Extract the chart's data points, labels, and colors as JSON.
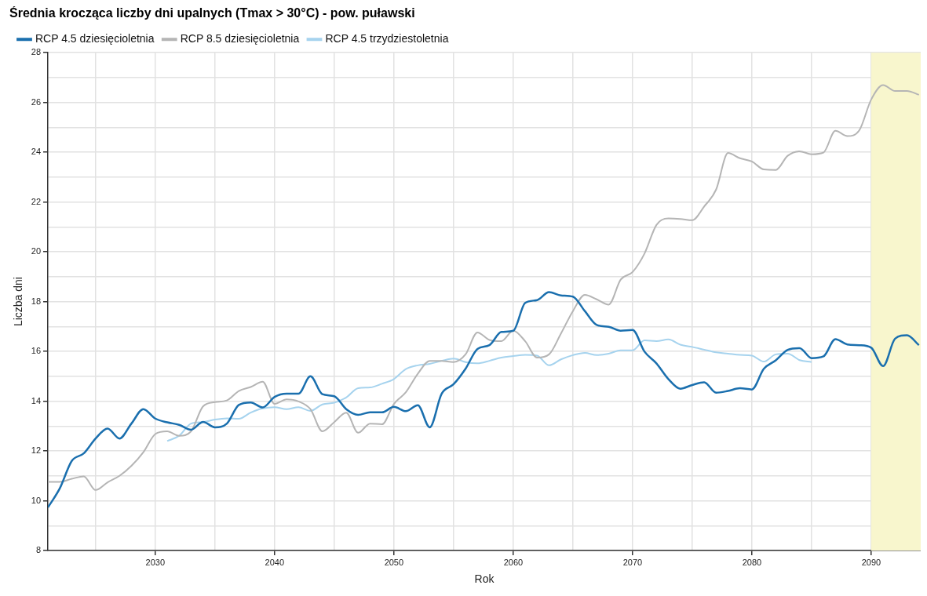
{
  "chart_data": {
    "type": "line",
    "title": "Średnia krocząca liczby dni upalnych (Tmax > 30°C) - pow. puławski",
    "xlabel": "Rok",
    "ylabel": "Liczba dni",
    "legend": "top left",
    "grid": true,
    "marker": "none",
    "line_style": "solid",
    "xlim": [
      2021,
      2094.15
    ],
    "xticks": [
      {
        "value": 2025,
        "label": null
      },
      2030,
      {
        "value": 2035,
        "label": null
      },
      2040,
      {
        "value": 2045,
        "label": null
      },
      2050,
      {
        "value": 2055,
        "label": null
      },
      2060,
      {
        "value": 2065,
        "label": null
      },
      2070,
      {
        "value": 2075,
        "label": null
      },
      2080,
      {
        "value": 2085,
        "label": null
      },
      2090
    ],
    "ylim": [
      8,
      28
    ],
    "yticks": [
      8,
      {
        "value": 9,
        "label": null
      },
      10,
      {
        "value": 11,
        "label": null
      },
      12,
      {
        "value": 13,
        "label": null
      },
      14,
      {
        "value": 15,
        "label": null
      },
      16,
      {
        "value": 17,
        "label": null
      },
      18,
      {
        "value": 19,
        "label": null
      },
      20,
      {
        "value": 21,
        "label": null
      },
      22,
      {
        "value": 23,
        "label": null
      },
      24,
      {
        "value": 25,
        "label": null
      },
      26,
      {
        "value": 27,
        "label": null
      },
      28
    ],
    "bands": [
      {
        "axis": "x",
        "from": 2090,
        "to": 2094.15,
        "color": "#f8f6cd"
      }
    ],
    "x": [
      2021,
      2022,
      2023,
      2024,
      2025,
      2026,
      2027,
      2028,
      2029,
      2030,
      2031,
      2032,
      2033,
      2034,
      2035,
      2036,
      2037,
      2038,
      2039,
      2040,
      2041,
      2042,
      2043,
      2044,
      2045,
      2046,
      2047,
      2048,
      2049,
      2050,
      2051,
      2052,
      2053,
      2054,
      2055,
      2056,
      2057,
      2058,
      2059,
      2060,
      2061,
      2062,
      2063,
      2064,
      2065,
      2066,
      2067,
      2068,
      2069,
      2070,
      2071,
      2072,
      2073,
      2074,
      2075,
      2076,
      2077,
      2078,
      2079,
      2080,
      2081,
      2082,
      2083,
      2084,
      2085,
      2086,
      2087,
      2088,
      2089,
      2090,
      2091,
      2092,
      2093,
      2094
    ],
    "series": [
      {
        "name": "RCP 4.5 dziesięcioletnia",
        "color": "#1a6fae",
        "values": [
          9.73,
          10.5,
          11.6,
          11.9,
          12.5,
          12.9,
          12.5,
          13.1,
          13.68,
          13.3,
          13.15,
          13.05,
          12.85,
          13.17,
          12.95,
          13.1,
          13.85,
          13.95,
          13.75,
          14.17,
          14.3,
          14.3,
          15.0,
          14.28,
          14.2,
          13.68,
          13.45,
          13.55,
          13.55,
          13.77,
          13.6,
          13.84,
          12.95,
          14.3,
          14.68,
          15.3,
          16.1,
          16.25,
          16.78,
          16.83,
          17.95,
          18.06,
          18.38,
          18.25,
          18.2,
          17.62,
          17.06,
          16.99,
          16.83,
          16.86,
          15.99,
          15.52,
          14.89,
          14.5,
          14.65,
          14.76,
          14.34,
          14.41,
          14.52,
          14.47,
          15.3,
          15.64,
          16.06,
          16.13,
          15.73,
          15.8,
          16.49,
          16.28,
          16.25,
          16.15,
          15.41,
          16.51,
          16.65,
          16.25
        ]
      },
      {
        "name": "RCP 8.5 dziesięcioletnia",
        "color": "#b5b5b5",
        "values": [
          10.76,
          10.76,
          10.88,
          10.98,
          10.43,
          10.74,
          11.0,
          11.4,
          11.95,
          12.68,
          12.79,
          12.61,
          12.79,
          13.79,
          13.96,
          14.03,
          14.41,
          14.57,
          14.78,
          13.89,
          14.07,
          13.99,
          13.68,
          12.79,
          13.16,
          13.54,
          12.73,
          13.1,
          13.07,
          13.89,
          14.36,
          15.1,
          15.62,
          15.62,
          15.57,
          15.88,
          16.76,
          16.46,
          16.41,
          16.83,
          16.41,
          15.75,
          15.88,
          16.72,
          17.62,
          18.27,
          18.09,
          17.88,
          18.88,
          19.19,
          19.93,
          21.08,
          21.34,
          21.32,
          21.27,
          21.82,
          22.5,
          23.97,
          23.76,
          23.63,
          23.31,
          23.29,
          23.86,
          24.04,
          23.92,
          23.99,
          24.86,
          24.65,
          24.88,
          26.12,
          26.7,
          26.46,
          26.46,
          26.31
        ]
      },
      {
        "name": "RCP 4.5 trzydziestoletnia",
        "color": "#a6d3ee",
        "values": [
          null,
          null,
          null,
          null,
          null,
          null,
          null,
          null,
          null,
          null,
          12.4,
          12.61,
          13.1,
          13.16,
          13.26,
          13.31,
          13.29,
          13.54,
          13.71,
          13.76,
          13.68,
          13.76,
          13.61,
          13.87,
          13.94,
          14.15,
          14.52,
          14.55,
          14.7,
          14.89,
          15.29,
          15.44,
          15.5,
          15.62,
          15.71,
          15.57,
          15.52,
          15.62,
          15.75,
          15.81,
          15.86,
          15.83,
          15.44,
          15.68,
          15.85,
          15.94,
          15.85,
          15.91,
          16.04,
          16.04,
          16.44,
          16.41,
          16.48,
          16.27,
          16.18,
          16.07,
          15.96,
          15.91,
          15.86,
          15.83,
          15.59,
          15.88,
          15.91,
          15.65,
          15.57,
          null,
          null,
          null,
          null,
          null,
          null,
          null,
          null,
          null
        ]
      }
    ]
  }
}
